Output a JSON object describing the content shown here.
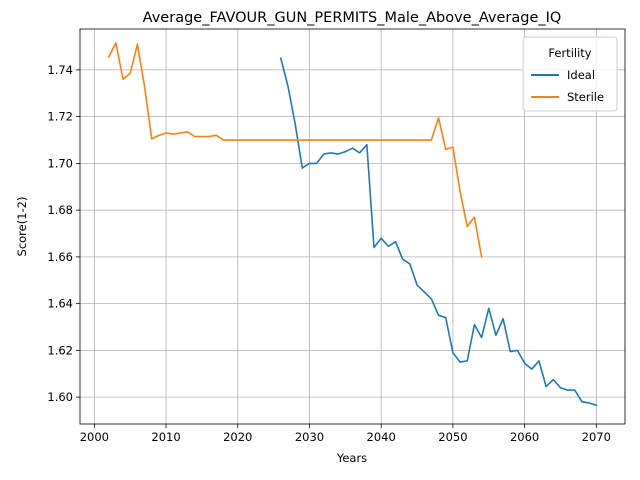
{
  "chart_data": {
    "type": "line",
    "title": "Average_FAVOUR_GUN_PERMITS_Male_Above_Average_IQ",
    "xlabel": "Years",
    "ylabel": "Score(1-2)",
    "xlim": [
      1998,
      2074
    ],
    "ylim": [
      1.5885,
      1.7575
    ],
    "xticks": [
      2000,
      2010,
      2020,
      2030,
      2040,
      2050,
      2060,
      2070
    ],
    "yticks": [
      1.6,
      1.62,
      1.64,
      1.66,
      1.68,
      1.7,
      1.72,
      1.74
    ],
    "grid": true,
    "legend": {
      "title": "Fertility",
      "position": "top-right"
    },
    "series": [
      {
        "name": "Ideal",
        "color": "#1f77b4",
        "x": [
          2026,
          2027,
          2028,
          2029,
          2030,
          2031,
          2032,
          2033,
          2034,
          2035,
          2036,
          2037,
          2038,
          2039,
          2040,
          2041,
          2042,
          2043,
          2044,
          2045,
          2046,
          2047,
          2048,
          2049,
          2050,
          2051,
          2052,
          2053,
          2054,
          2055,
          2056,
          2057,
          2058,
          2059,
          2060,
          2061,
          2062,
          2063,
          2064,
          2065,
          2066,
          2067,
          2068,
          2069,
          2070
        ],
        "y": [
          1.745,
          1.733,
          1.717,
          1.698,
          1.7,
          1.7,
          1.704,
          1.7045,
          1.704,
          1.705,
          1.7065,
          1.7045,
          1.708,
          1.664,
          1.668,
          1.6645,
          1.6665,
          1.659,
          1.657,
          1.648,
          1.645,
          1.642,
          1.635,
          1.634,
          1.619,
          1.615,
          1.6155,
          1.631,
          1.6255,
          1.638,
          1.6265,
          1.6335,
          1.6195,
          1.62,
          1.6145,
          1.612,
          1.6155,
          1.6045,
          1.6075,
          1.604,
          1.603,
          1.603,
          1.598,
          1.5975,
          1.5965
        ]
      },
      {
        "name": "Sterile",
        "color": "#ff7f0e",
        "x": [
          2002,
          2003,
          2004,
          2005,
          2006,
          2007,
          2008,
          2009,
          2010,
          2011,
          2012,
          2013,
          2014,
          2015,
          2016,
          2017,
          2018,
          2019,
          2020,
          2021,
          2022,
          2023,
          2024,
          2025,
          2026,
          2027,
          2028,
          2029,
          2030,
          2031,
          2032,
          2033,
          2034,
          2035,
          2036,
          2037,
          2038,
          2039,
          2040,
          2041,
          2042,
          2043,
          2044,
          2045,
          2046,
          2047,
          2048,
          2049,
          2050,
          2051,
          2052,
          2053,
          2054
        ],
        "y": [
          1.7455,
          1.7515,
          1.736,
          1.7385,
          1.751,
          1.733,
          1.7105,
          1.712,
          1.713,
          1.7125,
          1.713,
          1.7135,
          1.7115,
          1.7115,
          1.7115,
          1.712,
          1.71,
          1.71,
          1.71,
          1.71,
          1.71,
          1.71,
          1.71,
          1.71,
          1.71,
          1.71,
          1.71,
          1.71,
          1.71,
          1.71,
          1.71,
          1.71,
          1.71,
          1.71,
          1.71,
          1.71,
          1.71,
          1.71,
          1.71,
          1.71,
          1.71,
          1.71,
          1.71,
          1.71,
          1.71,
          1.71,
          1.7195,
          1.706,
          1.707,
          1.688,
          1.673,
          1.677,
          1.66
        ]
      }
    ]
  }
}
